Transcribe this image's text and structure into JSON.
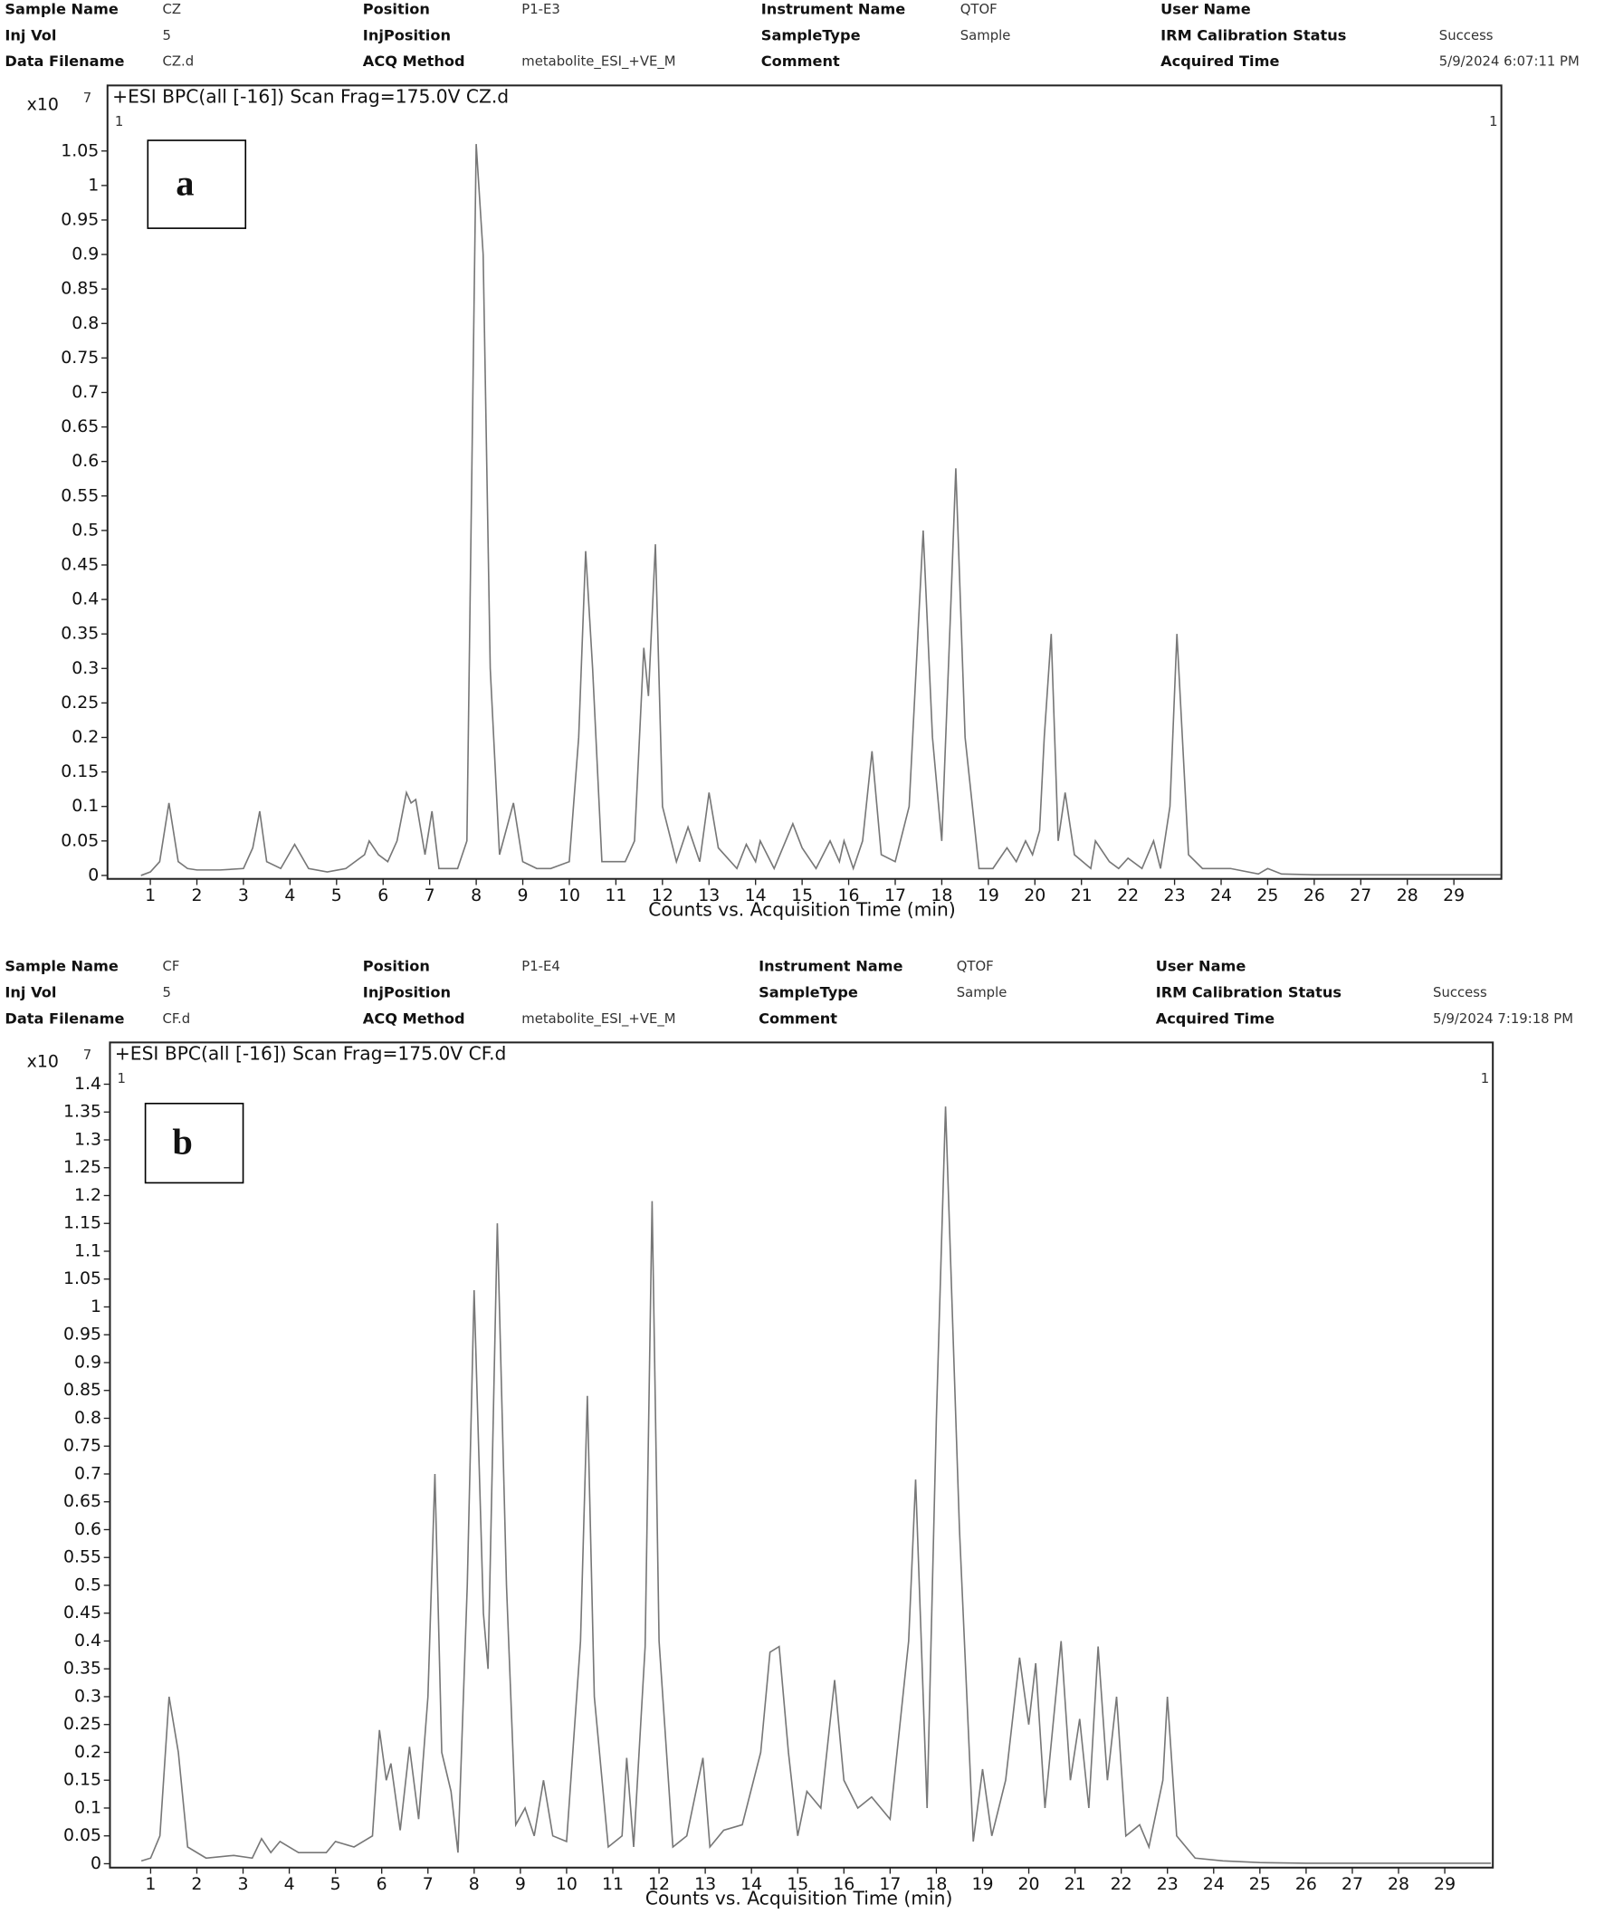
{
  "chart_data": [
    {
      "type": "line",
      "panel_label": "a",
      "title": "+ESI BPC(all [-16]) Scan Frag=175.0V CZ.d",
      "xlabel": "Counts vs. Acquisition Time (min)",
      "y_scale_label": "x10",
      "y_scale_exp": "7",
      "corner_marks": [
        "1",
        "1"
      ],
      "info": [
        {
          "label": "Sample Name",
          "value": "CZ"
        },
        {
          "label": "Position",
          "value": "P1-E3"
        },
        {
          "label": "Instrument Name",
          "value": "QTOF"
        },
        {
          "label": "User Name"
        },
        {
          "label": "Inj Vol",
          "value": "5"
        },
        {
          "label": "InjPosition"
        },
        {
          "label": "SampleType",
          "value": "Sample"
        },
        {
          "label": "IRM Calibration Status",
          "value": "Success"
        },
        {
          "label": "Data Filename",
          "value": "CZ.d"
        },
        {
          "label": "ACQ Method",
          "value": "metabolite_ESI_+VE_M"
        },
        {
          "label": "Comment"
        },
        {
          "label": "Acquired Time",
          "value": "5/9/2024 6:07:11 PM"
        }
      ],
      "color": "#777777",
      "xlim": [
        0.08,
        30.02
      ],
      "ylim": [
        -0.005,
        1.145
      ],
      "xticks": [
        1,
        2,
        3,
        4,
        5,
        6,
        7,
        8,
        9,
        10,
        11,
        12,
        13,
        14,
        15,
        16,
        17,
        18,
        19,
        20,
        21,
        22,
        23,
        24,
        25,
        26,
        27,
        28,
        29
      ],
      "yticks": [
        0,
        0.05,
        0.1,
        0.15,
        0.2,
        0.25,
        0.3,
        0.35,
        0.4,
        0.45,
        0.5,
        0.55,
        0.6,
        0.65,
        0.7,
        0.75,
        0.8,
        0.85,
        0.9,
        0.95,
        1,
        1.05
      ],
      "x": [
        0.8,
        1.0,
        1.2,
        1.4,
        1.6,
        1.8,
        2.0,
        2.5,
        3.0,
        3.2,
        3.35,
        3.5,
        3.8,
        4.1,
        4.4,
        4.8,
        5.2,
        5.6,
        5.7,
        5.9,
        6.1,
        6.3,
        6.5,
        6.6,
        6.7,
        6.9,
        7.05,
        7.2,
        7.6,
        7.8,
        8.0,
        8.15,
        8.3,
        8.5,
        8.8,
        9.0,
        9.3,
        9.6,
        10.0,
        10.2,
        10.35,
        10.5,
        10.7,
        11.0,
        11.2,
        11.4,
        11.6,
        11.7,
        11.85,
        12.0,
        12.3,
        12.55,
        12.8,
        13.0,
        13.2,
        13.6,
        13.8,
        14.0,
        14.1,
        14.4,
        14.8,
        15.0,
        15.3,
        15.6,
        15.8,
        15.9,
        16.1,
        16.3,
        16.5,
        16.7,
        17.0,
        17.3,
        17.6,
        17.8,
        18.0,
        18.2,
        18.3,
        18.5,
        18.8,
        19.1,
        19.4,
        19.6,
        19.8,
        19.95,
        20.1,
        20.2,
        20.35,
        20.5,
        20.65,
        20.85,
        21.2,
        21.3,
        21.6,
        21.8,
        22.0,
        22.3,
        22.55,
        22.7,
        22.9,
        23.05,
        23.3,
        23.6,
        24.2,
        24.8,
        25.0,
        25.3,
        26,
        30
      ],
      "values": [
        0,
        0.005,
        0.02,
        0.105,
        0.02,
        0.01,
        0.008,
        0.008,
        0.01,
        0.04,
        0.093,
        0.02,
        0.01,
        0.045,
        0.01,
        0.005,
        0.01,
        0.03,
        0.05,
        0.03,
        0.02,
        0.05,
        0.12,
        0.105,
        0.11,
        0.03,
        0.093,
        0.01,
        0.01,
        0.05,
        1.06,
        0.9,
        0.3,
        0.03,
        0.105,
        0.02,
        0.01,
        0.01,
        0.02,
        0.2,
        0.47,
        0.3,
        0.02,
        0.02,
        0.02,
        0.05,
        0.33,
        0.26,
        0.48,
        0.1,
        0.02,
        0.07,
        0.02,
        0.12,
        0.04,
        0.01,
        0.045,
        0.02,
        0.05,
        0.01,
        0.075,
        0.04,
        0.01,
        0.05,
        0.02,
        0.05,
        0.01,
        0.05,
        0.18,
        0.03,
        0.02,
        0.1,
        0.5,
        0.2,
        0.05,
        0.4,
        0.59,
        0.2,
        0.01,
        0.01,
        0.04,
        0.02,
        0.05,
        0.03,
        0.065,
        0.2,
        0.35,
        0.05,
        0.12,
        0.03,
        0.01,
        0.05,
        0.02,
        0.01,
        0.025,
        0.01,
        0.05,
        0.01,
        0.1,
        0.35,
        0.03,
        0.01,
        0.01,
        0.002,
        0.01,
        0.002,
        0.001,
        0.001
      ]
    },
    {
      "type": "line",
      "panel_label": "b",
      "title": "+ESI BPC(all [-16]) Scan Frag=175.0V CF.d",
      "xlabel": "Counts vs. Acquisition Time (min)",
      "y_scale_label": "x10",
      "y_scale_exp": "7",
      "corner_marks": [
        "1",
        "1"
      ],
      "info": [
        {
          "label": "Sample Name",
          "value": "CF"
        },
        {
          "label": "Position",
          "value": "P1-E4"
        },
        {
          "label": "Instrument Name",
          "value": "QTOF"
        },
        {
          "label": "User Name"
        },
        {
          "label": "Inj Vol",
          "value": "5"
        },
        {
          "label": "InjPosition"
        },
        {
          "label": "SampleType",
          "value": "Sample"
        },
        {
          "label": "IRM Calibration Status",
          "value": "Success"
        },
        {
          "label": "Data Filename",
          "value": "CF.d"
        },
        {
          "label": "ACQ Method",
          "value": "metabolite_ESI_+VE_M"
        },
        {
          "label": "Comment"
        },
        {
          "label": "Acquired Time",
          "value": "5/9/2024 7:19:18 PM"
        }
      ],
      "color": "#777777",
      "xlim": [
        0.12,
        30.04
      ],
      "ylim": [
        -0.007,
        1.475
      ],
      "xticks": [
        1,
        2,
        3,
        4,
        5,
        6,
        7,
        8,
        9,
        10,
        11,
        12,
        13,
        14,
        15,
        16,
        17,
        18,
        19,
        20,
        21,
        22,
        23,
        24,
        25,
        26,
        27,
        28,
        29
      ],
      "yticks": [
        0,
        0.05,
        0.1,
        0.15,
        0.2,
        0.25,
        0.3,
        0.35,
        0.4,
        0.45,
        0.5,
        0.55,
        0.6,
        0.65,
        0.7,
        0.75,
        0.8,
        0.85,
        0.9,
        0.95,
        1,
        1.05,
        1.1,
        1.15,
        1.2,
        1.25,
        1.3,
        1.35,
        1.4
      ],
      "x": [
        0.8,
        1.0,
        1.2,
        1.4,
        1.6,
        1.8,
        2.2,
        2.8,
        3.2,
        3.4,
        3.6,
        3.8,
        4.2,
        4.8,
        5.0,
        5.4,
        5.8,
        5.95,
        6.1,
        6.2,
        6.4,
        6.6,
        6.8,
        7.0,
        7.15,
        7.3,
        7.5,
        7.65,
        7.85,
        8.0,
        8.2,
        8.3,
        8.5,
        8.7,
        8.9,
        9.1,
        9.3,
        9.5,
        9.7,
        10.0,
        10.3,
        10.45,
        10.6,
        10.9,
        11.2,
        11.3,
        11.45,
        11.7,
        11.85,
        12.0,
        12.3,
        12.6,
        12.95,
        13.1,
        13.4,
        13.8,
        14.2,
        14.4,
        14.6,
        14.8,
        15.0,
        15.2,
        15.5,
        15.8,
        16.0,
        16.3,
        16.6,
        17.0,
        17.4,
        17.55,
        17.8,
        18.0,
        18.2,
        18.5,
        18.8,
        19.0,
        19.2,
        19.5,
        19.8,
        20.0,
        20.15,
        20.35,
        20.7,
        20.9,
        21.1,
        21.3,
        21.5,
        21.7,
        21.9,
        22.1,
        22.4,
        22.6,
        22.9,
        23.0,
        23.2,
        23.6,
        24.2,
        25,
        26,
        30
      ],
      "values": [
        0.005,
        0.01,
        0.05,
        0.3,
        0.2,
        0.03,
        0.01,
        0.015,
        0.01,
        0.045,
        0.02,
        0.04,
        0.02,
        0.02,
        0.04,
        0.03,
        0.05,
        0.24,
        0.15,
        0.18,
        0.06,
        0.21,
        0.08,
        0.3,
        0.7,
        0.2,
        0.13,
        0.02,
        0.5,
        1.03,
        0.45,
        0.35,
        1.15,
        0.5,
        0.07,
        0.1,
        0.05,
        0.15,
        0.05,
        0.04,
        0.4,
        0.84,
        0.3,
        0.03,
        0.05,
        0.19,
        0.03,
        0.39,
        1.19,
        0.4,
        0.03,
        0.05,
        0.19,
        0.03,
        0.06,
        0.07,
        0.2,
        0.38,
        0.39,
        0.2,
        0.05,
        0.13,
        0.1,
        0.33,
        0.15,
        0.1,
        0.12,
        0.08,
        0.4,
        0.69,
        0.1,
        0.8,
        1.36,
        0.6,
        0.04,
        0.17,
        0.05,
        0.15,
        0.37,
        0.25,
        0.36,
        0.1,
        0.4,
        0.15,
        0.26,
        0.1,
        0.39,
        0.15,
        0.3,
        0.05,
        0.07,
        0.03,
        0.15,
        0.3,
        0.05,
        0.01,
        0.005,
        0.002,
        0.001,
        0.001
      ]
    }
  ]
}
